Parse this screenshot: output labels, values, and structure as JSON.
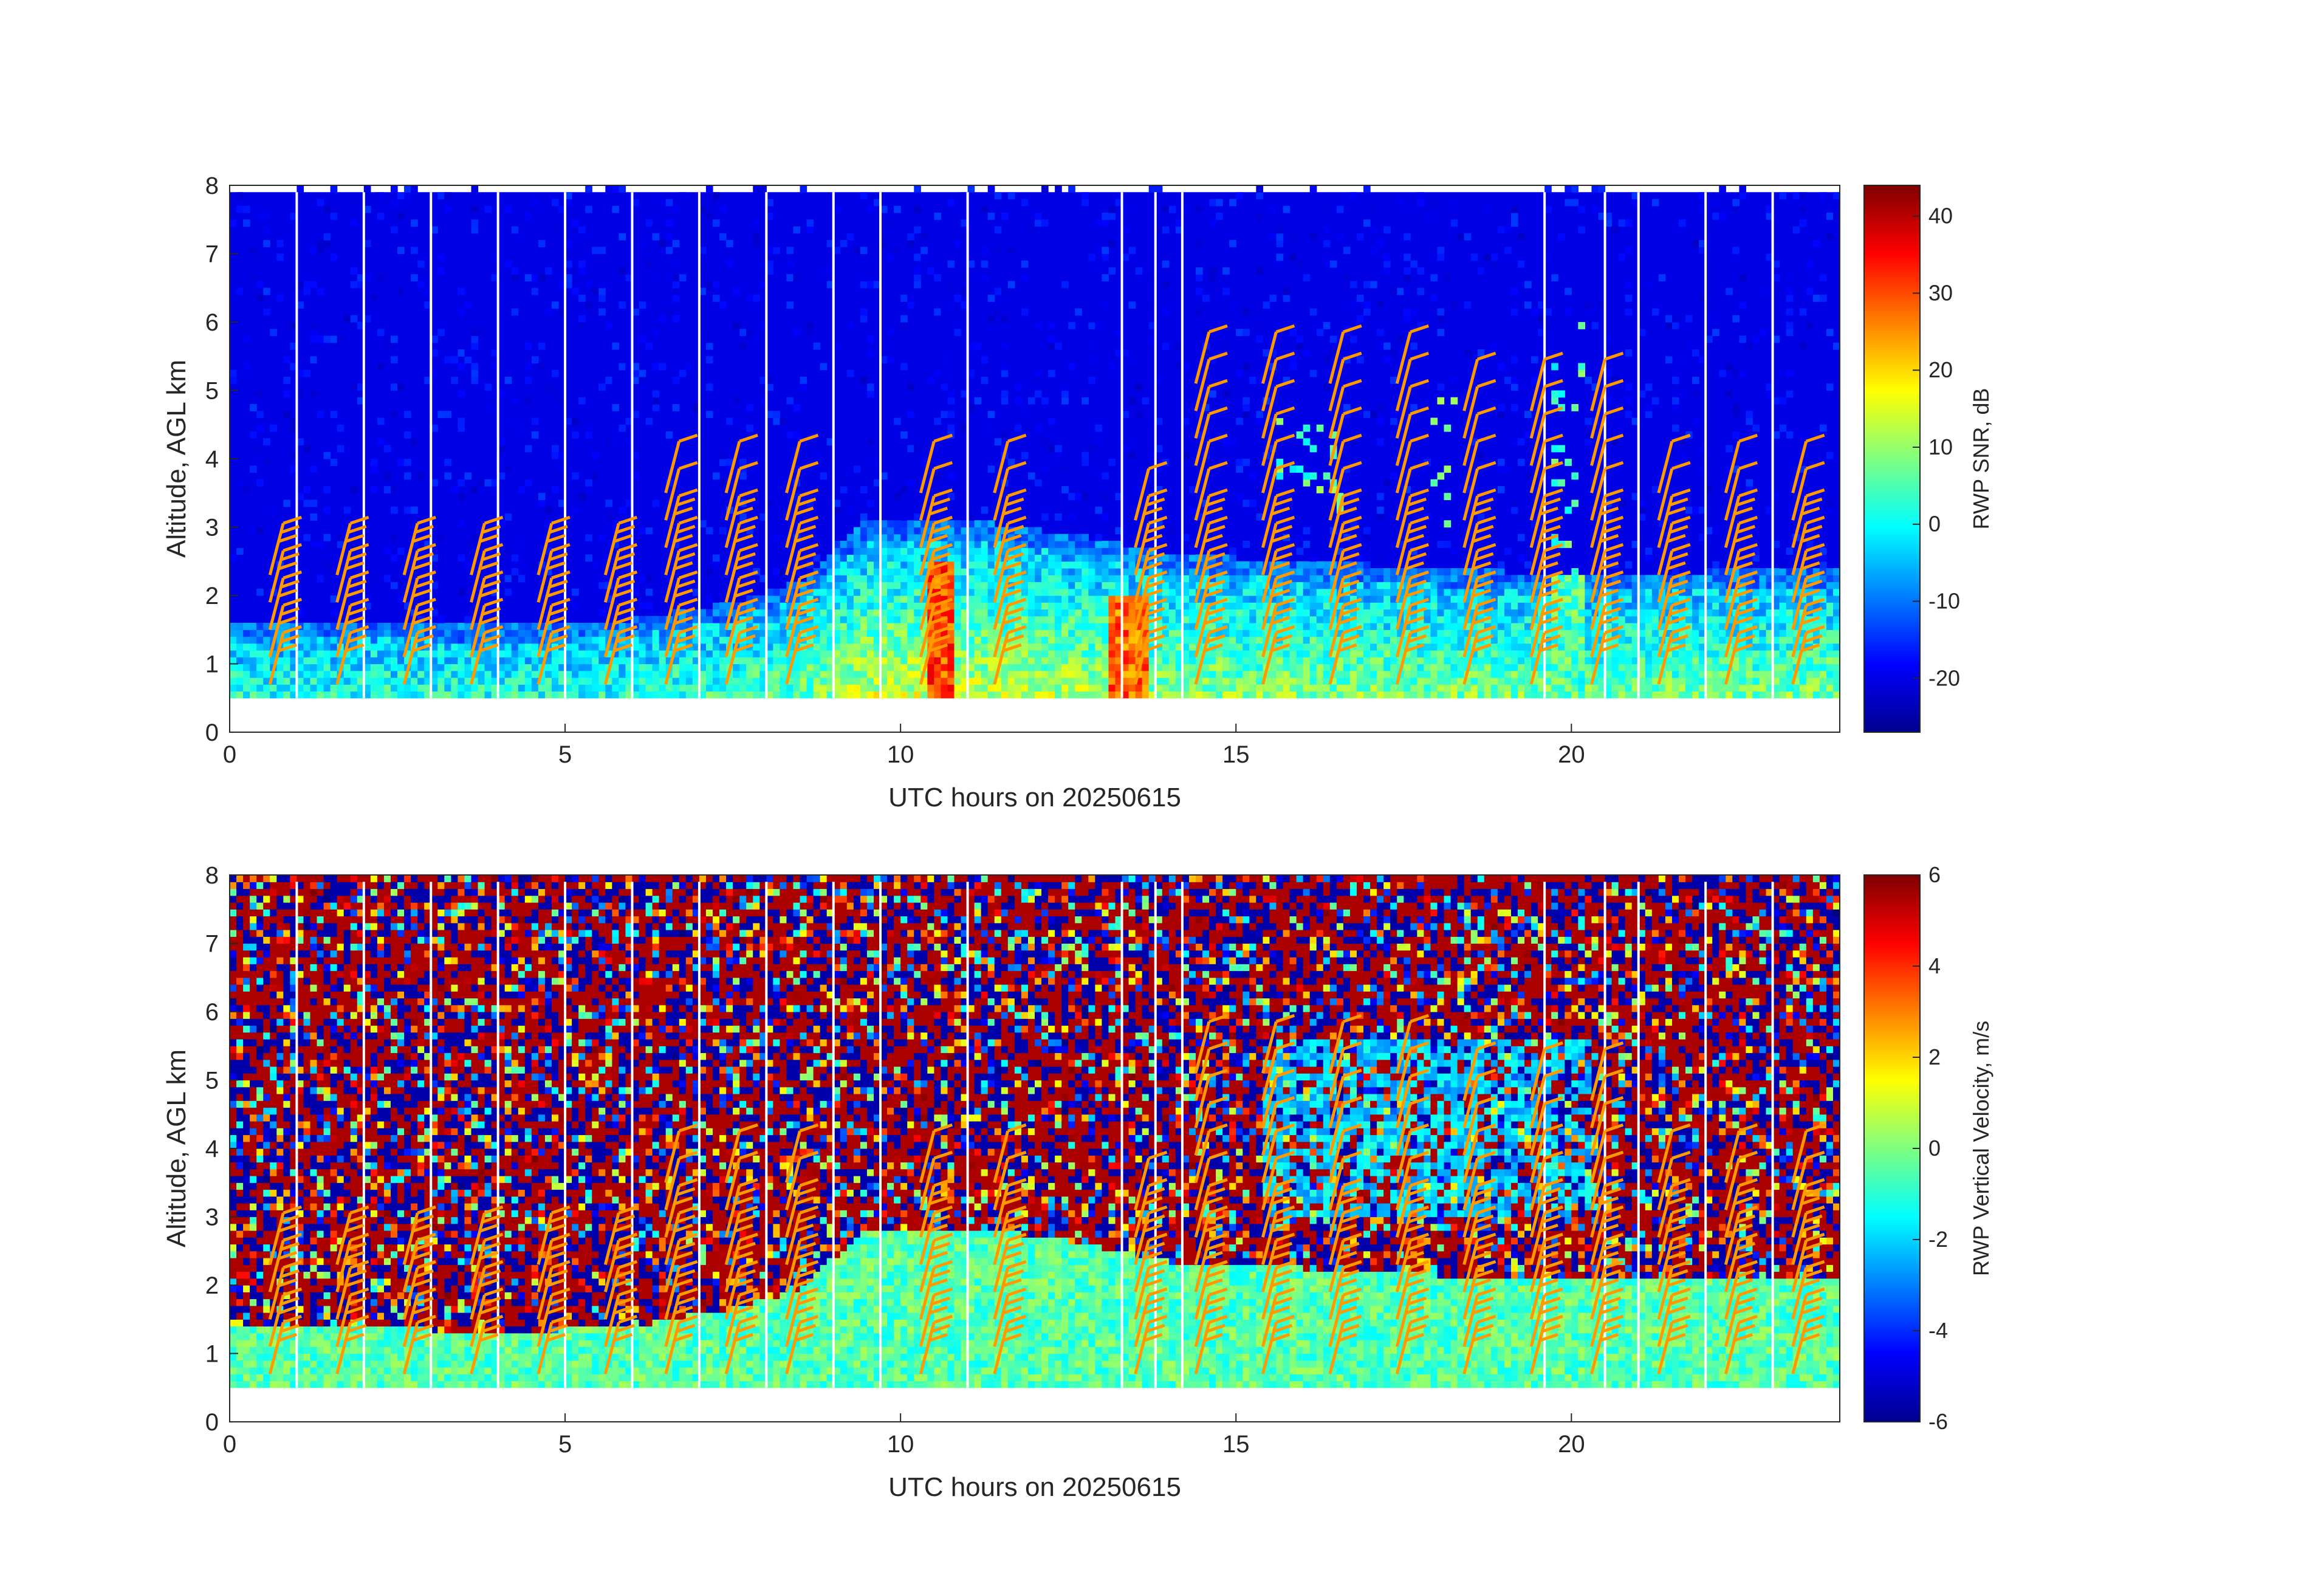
{
  "chart_data": [
    {
      "type": "heatmap",
      "panel": "top",
      "xlabel": "UTC hours on 20250615",
      "ylabel": "Altitude, AGL km",
      "colorbar_label": "RWP SNR, dB",
      "xlim": [
        0,
        24
      ],
      "ylim": [
        0,
        8
      ],
      "xticks": [
        0,
        5,
        10,
        15,
        20
      ],
      "yticks": [
        0,
        1,
        2,
        3,
        4,
        5,
        6,
        7,
        8
      ],
      "clim": [
        -27,
        44
      ],
      "cticks": [
        -20,
        -10,
        0,
        10,
        20,
        30,
        40
      ],
      "colormap": "jet",
      "data_range_km": [
        0.5,
        7.9
      ],
      "background_value_db": -20,
      "boundary_layer_top_km": [
        [
          0,
          1.3
        ],
        [
          2,
          1.35
        ],
        [
          4,
          1.25
        ],
        [
          6,
          1.35
        ],
        [
          7.5,
          1.6
        ],
        [
          8.5,
          1.9
        ],
        [
          9.5,
          2.8
        ],
        [
          11,
          2.8
        ],
        [
          12.5,
          2.6
        ],
        [
          14,
          2.3
        ],
        [
          16,
          2.2
        ],
        [
          20,
          2.0
        ],
        [
          24,
          2.1
        ]
      ],
      "highlights": [
        {
          "x0": 10.3,
          "x1": 10.7,
          "y0": 0.5,
          "y1": 2.5,
          "value_db": 30
        },
        {
          "x0": 13.0,
          "x1": 13.6,
          "y0": 0.5,
          "y1": 2.0,
          "value_db": 28
        },
        {
          "x0": 15.5,
          "x1": 16.5,
          "y0": 3.2,
          "y1": 4.5,
          "value_db": 5
        },
        {
          "x0": 17.8,
          "x1": 18.3,
          "y0": 3.0,
          "y1": 4.8,
          "value_db": 5
        },
        {
          "x0": 19.7,
          "x1": 20.2,
          "y0": 0.5,
          "y1": 6.0,
          "value_db": 5
        }
      ],
      "gap_hours": [
        1.0,
        2.0,
        3.0,
        4.0,
        5.0,
        6.0,
        7.0,
        8.0,
        9.0,
        9.7,
        11.0,
        13.3,
        13.8,
        14.2,
        19.6,
        20.5,
        21.0,
        22.0,
        23.0
      ],
      "wind_barb_color": "#ff9900"
    },
    {
      "type": "heatmap",
      "panel": "bottom",
      "xlabel": "UTC hours on 20250615",
      "ylabel": "Altitude, AGL km",
      "colorbar_label": "RWP Vertical Velocity, m/s",
      "xlim": [
        0,
        24
      ],
      "ylim": [
        0,
        8
      ],
      "xticks": [
        0,
        5,
        10,
        15,
        20
      ],
      "yticks": [
        0,
        1,
        2,
        3,
        4,
        5,
        6,
        7,
        8
      ],
      "clim": [
        -6,
        6
      ],
      "cticks": [
        -6,
        -4,
        -2,
        0,
        2,
        4,
        6
      ],
      "colormap": "jet",
      "data_range_km": [
        0.5,
        7.9
      ],
      "low_level_velocity_ms": -0.5,
      "wind_barb_color": "#ff9900"
    }
  ]
}
